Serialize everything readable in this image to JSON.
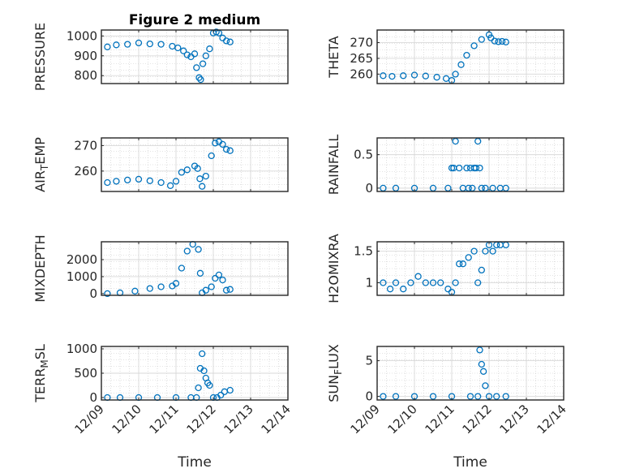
{
  "figure": {
    "title": "Figure 2 medium",
    "xlabel": "Time",
    "x_tick_labels": [
      "12/09",
      "12/10",
      "12/11",
      "12/12",
      "12/13",
      "12/14"
    ],
    "series_color": "#0072BD"
  },
  "chart_data": [
    {
      "type": "scatter",
      "title": "Figure 2 medium",
      "ylabel": "PRESSURE",
      "ylim": [
        760,
        1030
      ],
      "yticks": [
        800,
        900,
        1000
      ],
      "xlabel": "",
      "xlim": [
        0,
        5
      ],
      "grid": true,
      "x": [
        0.16,
        0.4,
        0.7,
        1.0,
        1.3,
        1.6,
        1.9,
        2.05,
        2.2,
        2.3,
        2.4,
        2.5,
        2.55,
        2.62,
        2.66,
        2.72,
        2.8,
        2.9,
        3.0,
        3.08,
        3.15,
        3.25,
        3.35,
        3.45
      ],
      "y": [
        945,
        955,
        958,
        965,
        960,
        958,
        948,
        940,
        925,
        905,
        895,
        910,
        840,
        790,
        780,
        860,
        900,
        935,
        1015,
        1020,
        1015,
        990,
        975,
        970
      ]
    },
    {
      "type": "scatter",
      "title": "",
      "ylabel": "THETA",
      "ylim": [
        257,
        274
      ],
      "yticks": [
        260,
        265,
        270
      ],
      "xlabel": "",
      "xlim": [
        0,
        5
      ],
      "grid": true,
      "x": [
        0.16,
        0.4,
        0.7,
        1.0,
        1.3,
        1.6,
        1.85,
        2.0,
        2.1,
        2.25,
        2.4,
        2.6,
        2.8,
        3.0,
        3.05,
        3.15,
        3.25,
        3.35,
        3.45
      ],
      "y": [
        259.5,
        259.3,
        259.5,
        259.7,
        259.4,
        259.0,
        258.6,
        258.0,
        260.0,
        263.0,
        266.0,
        269.0,
        271.0,
        272.5,
        271.5,
        270.5,
        270.3,
        270.4,
        270.2
      ]
    },
    {
      "type": "scatter",
      "title": "",
      "ylabel": "AIR_TEMP",
      "ylim": [
        252,
        273
      ],
      "yticks": [
        260,
        270
      ],
      "xlabel": "",
      "xlim": [
        0,
        5
      ],
      "grid": true,
      "x": [
        0.16,
        0.4,
        0.7,
        1.0,
        1.3,
        1.6,
        1.85,
        2.0,
        2.15,
        2.3,
        2.5,
        2.58,
        2.64,
        2.7,
        2.8,
        2.95,
        3.05,
        3.15,
        3.25,
        3.35,
        3.45
      ],
      "y": [
        255.5,
        256.0,
        256.5,
        256.8,
        256.2,
        255.5,
        254.3,
        256.0,
        259.5,
        260.5,
        262.0,
        261.0,
        257.0,
        254.0,
        258.0,
        266.0,
        271.0,
        271.5,
        270.5,
        268.5,
        268.0
      ]
    },
    {
      "type": "scatter",
      "title": "",
      "ylabel": "RAINFALL",
      "ylim": [
        -0.05,
        0.75
      ],
      "yticks": [
        0,
        0.5
      ],
      "xlabel": "",
      "xlim": [
        0,
        5
      ],
      "grid": true,
      "x": [
        0.16,
        0.5,
        1.0,
        1.5,
        1.9,
        2.0,
        2.05,
        2.1,
        2.2,
        2.3,
        2.4,
        2.45,
        2.5,
        2.55,
        2.6,
        2.65,
        2.7,
        2.75,
        2.8,
        2.9,
        3.1,
        3.3,
        3.45
      ],
      "y": [
        0,
        0,
        0,
        0,
        0,
        0.3,
        0.3,
        0.7,
        0.3,
        0,
        0.3,
        0,
        0.3,
        0,
        0.3,
        0.3,
        0.7,
        0.3,
        0,
        0,
        0,
        0,
        0
      ]
    },
    {
      "type": "scatter",
      "title": "",
      "ylabel": "MIXDEPTH",
      "ylim": [
        -100,
        3050
      ],
      "yticks": [
        0,
        1000,
        2000
      ],
      "xlabel": "",
      "xlim": [
        0,
        5
      ],
      "grid": true,
      "x": [
        0.16,
        0.5,
        0.9,
        1.3,
        1.6,
        1.9,
        2.0,
        2.15,
        2.3,
        2.45,
        2.6,
        2.65,
        2.7,
        2.8,
        2.95,
        3.05,
        3.15,
        3.25,
        3.35,
        3.45
      ],
      "y": [
        0,
        50,
        150,
        300,
        400,
        450,
        600,
        1500,
        2500,
        2900,
        2600,
        1200,
        50,
        200,
        400,
        900,
        1100,
        800,
        200,
        250
      ]
    },
    {
      "type": "scatter",
      "title": "",
      "ylabel": "H2OMIXRA",
      "ylim": [
        0.8,
        1.65
      ],
      "yticks": [
        1,
        1.5
      ],
      "xlabel": "",
      "xlim": [
        0,
        5
      ],
      "grid": true,
      "x": [
        0.16,
        0.35,
        0.5,
        0.7,
        0.9,
        1.1,
        1.3,
        1.5,
        1.7,
        1.9,
        2.0,
        2.1,
        2.2,
        2.3,
        2.45,
        2.6,
        2.7,
        2.8,
        2.9,
        3.0,
        3.1,
        3.2,
        3.3,
        3.45
      ],
      "y": [
        1.0,
        0.9,
        1.0,
        0.9,
        1.0,
        1.1,
        1.0,
        1.0,
        1.0,
        0.9,
        0.85,
        1.0,
        1.3,
        1.3,
        1.4,
        1.5,
        1.0,
        1.2,
        1.5,
        1.6,
        1.5,
        1.6,
        1.6,
        1.6
      ]
    },
    {
      "type": "scatter",
      "title": "",
      "ylabel": "TERR_MSL",
      "ylim": [
        -50,
        1050
      ],
      "yticks": [
        0,
        500,
        1000
      ],
      "xlabel": "Time",
      "xlim": [
        0,
        5
      ],
      "grid": true,
      "x": [
        0.16,
        0.5,
        1.0,
        1.5,
        2.0,
        2.4,
        2.55,
        2.6,
        2.65,
        2.7,
        2.75,
        2.8,
        2.85,
        2.9,
        3.0,
        3.1,
        3.2,
        3.3,
        3.45
      ],
      "y": [
        0,
        0,
        0,
        0,
        0,
        0,
        0,
        200,
        600,
        900,
        550,
        400,
        300,
        250,
        0,
        0,
        50,
        120,
        150
      ]
    },
    {
      "type": "scatter",
      "title": "",
      "ylabel": "SUN_FLUX",
      "ylim": [
        -0.5,
        7
      ],
      "yticks": [
        0,
        5
      ],
      "xlabel": "Time",
      "xlim": [
        0,
        5
      ],
      "grid": true,
      "x": [
        0.16,
        0.5,
        1.0,
        1.5,
        2.0,
        2.5,
        2.7,
        2.75,
        2.8,
        2.85,
        2.9,
        3.0,
        3.2,
        3.45
      ],
      "y": [
        0,
        0,
        0,
        0,
        0,
        0,
        0,
        6.5,
        4.5,
        3.5,
        1.5,
        0,
        0,
        0
      ]
    }
  ]
}
